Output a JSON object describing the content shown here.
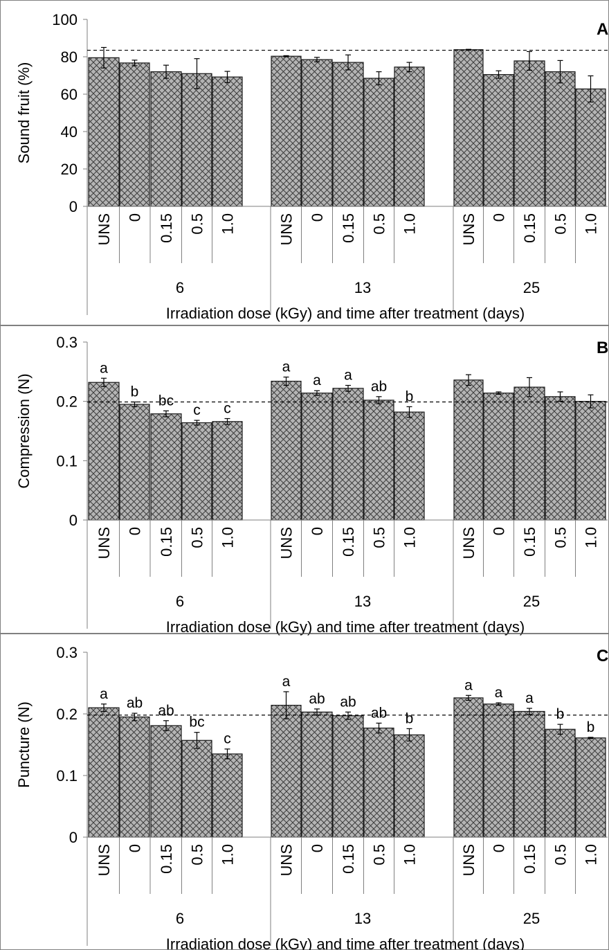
{
  "chart_data": [
    {
      "panel": "A",
      "type": "bar",
      "ylabel": "Sound fruit (%)",
      "xlabel": "Irradiation dose (kGy) and time after treatment (days)",
      "ylim": [
        0,
        100
      ],
      "yticks": [
        "0",
        "20",
        "40",
        "60",
        "80",
        "100"
      ],
      "reference_line": 83.5,
      "groups": [
        {
          "label": "6",
          "categories": [
            "UNS",
            "0",
            "0.15",
            "0.5",
            "1.0"
          ],
          "values": [
            79.5,
            76.7,
            72.0,
            71.0,
            69.2
          ],
          "errors": [
            5.5,
            1.5,
            3.5,
            8.0,
            3.0
          ],
          "letters": []
        },
        {
          "label": "13",
          "categories": [
            "UNS",
            "0",
            "0.15",
            "0.5",
            "1.0"
          ],
          "values": [
            80.3,
            78.5,
            77.0,
            68.5,
            74.5
          ],
          "errors": [
            0.3,
            1.2,
            4.0,
            3.5,
            2.5
          ],
          "letters": []
        },
        {
          "label": "25",
          "categories": [
            "UNS",
            "0",
            "0.15",
            "0.5",
            "1.0"
          ],
          "values": [
            83.8,
            70.5,
            77.8,
            72.0,
            62.8
          ],
          "errors": [
            0.2,
            2.0,
            5.0,
            6.0,
            7.0
          ],
          "letters": []
        }
      ]
    },
    {
      "panel": "B",
      "type": "bar",
      "ylabel": "Compression (N)",
      "xlabel": "Irradiation dose (kGy) and time after treatment (days)",
      "ylim": [
        0,
        0.3
      ],
      "yticks": [
        "0",
        "0.1",
        "0.2",
        "0.3"
      ],
      "reference_line": 0.199,
      "groups": [
        {
          "label": "6",
          "categories": [
            "UNS",
            "0",
            "0.15",
            "0.5",
            "1.0"
          ],
          "values": [
            0.232,
            0.195,
            0.179,
            0.164,
            0.166
          ],
          "errors": [
            0.007,
            0.004,
            0.005,
            0.004,
            0.005
          ],
          "letters": [
            "a",
            "b",
            "bc",
            "c",
            "c"
          ]
        },
        {
          "label": "13",
          "categories": [
            "UNS",
            "0",
            "0.15",
            "0.5",
            "1.0"
          ],
          "values": [
            0.234,
            0.214,
            0.222,
            0.202,
            0.182
          ],
          "errors": [
            0.007,
            0.004,
            0.005,
            0.006,
            0.009
          ],
          "letters": [
            "a",
            "a",
            "a",
            "ab",
            "b"
          ]
        },
        {
          "label": "25",
          "categories": [
            "UNS",
            "0",
            "0.15",
            "0.5",
            "1.0"
          ],
          "values": [
            0.236,
            0.214,
            0.224,
            0.208,
            0.2
          ],
          "errors": [
            0.009,
            0.002,
            0.016,
            0.008,
            0.011
          ],
          "letters": []
        }
      ]
    },
    {
      "panel": "C",
      "type": "bar",
      "ylabel": "Puncture (N)",
      "xlabel": "Irradiation dose (kGy) and time after treatment (days)",
      "ylim": [
        0,
        0.3
      ],
      "yticks": [
        "0",
        "0.1",
        "0.2",
        "0.3"
      ],
      "reference_line": 0.198,
      "groups": [
        {
          "label": "6",
          "categories": [
            "UNS",
            "0",
            "0.15",
            "0.5",
            "1.0"
          ],
          "values": [
            0.21,
            0.195,
            0.181,
            0.157,
            0.135
          ],
          "errors": [
            0.006,
            0.006,
            0.008,
            0.013,
            0.008
          ],
          "letters": [
            "a",
            "ab",
            "ab",
            "bc",
            "c"
          ]
        },
        {
          "label": "13",
          "categories": [
            "UNS",
            "0",
            "0.15",
            "0.5",
            "1.0"
          ],
          "values": [
            0.214,
            0.203,
            0.197,
            0.177,
            0.166
          ],
          "errors": [
            0.022,
            0.005,
            0.006,
            0.008,
            0.01
          ],
          "letters": [
            "a",
            "ab",
            "ab",
            "ab",
            "b"
          ]
        },
        {
          "label": "25",
          "categories": [
            "UNS",
            "0",
            "0.15",
            "0.5",
            "1.0"
          ],
          "values": [
            0.226,
            0.216,
            0.204,
            0.175,
            0.161
          ],
          "errors": [
            0.004,
            0.002,
            0.005,
            0.008,
            0.001
          ],
          "letters": [
            "a",
            "a",
            "a",
            "b",
            "b"
          ]
        }
      ]
    }
  ]
}
